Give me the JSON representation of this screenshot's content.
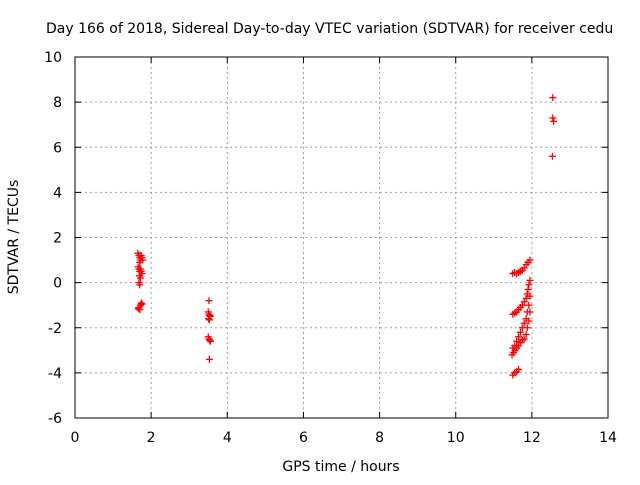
{
  "chart_data": {
    "type": "scatter",
    "title": "Day 166 of 2018, Sidereal Day-to-day VTEC variation (SDTVAR) for receiver cedu",
    "xlabel": "GPS time / hours",
    "ylabel": "SDTVAR / TECUs",
    "xlim": [
      0,
      14
    ],
    "ylim": [
      -6,
      10
    ],
    "xticks": [
      0,
      2,
      4,
      6,
      8,
      10,
      12,
      14
    ],
    "yticks": [
      -6,
      -4,
      -2,
      0,
      2,
      4,
      6,
      8,
      10
    ],
    "grid": true,
    "marker": "plus",
    "series": [
      {
        "name": "SDTVAR",
        "color": "#ff0000",
        "points": [
          [
            1.65,
            1.3
          ],
          [
            1.68,
            1.2
          ],
          [
            1.7,
            1.1
          ],
          [
            1.72,
            1.0
          ],
          [
            1.74,
            1.2
          ],
          [
            1.76,
            1.1
          ],
          [
            1.78,
            1.0
          ],
          [
            1.7,
            0.9
          ],
          [
            1.66,
            0.7
          ],
          [
            1.68,
            0.6
          ],
          [
            1.7,
            0.5
          ],
          [
            1.72,
            0.6
          ],
          [
            1.74,
            0.5
          ],
          [
            1.76,
            0.4
          ],
          [
            1.69,
            0.3
          ],
          [
            1.72,
            0.2
          ],
          [
            1.68,
            0.0
          ],
          [
            1.7,
            -0.1
          ],
          [
            1.68,
            -1.1
          ],
          [
            1.7,
            -1.2
          ],
          [
            1.72,
            -1.0
          ],
          [
            1.74,
            -0.9
          ],
          [
            1.76,
            -0.95
          ],
          [
            1.66,
            -1.15
          ],
          [
            3.52,
            -0.8
          ],
          [
            3.5,
            -1.3
          ],
          [
            3.52,
            -1.4
          ],
          [
            3.54,
            -1.45
          ],
          [
            3.51,
            -1.6
          ],
          [
            3.55,
            -1.5
          ],
          [
            3.53,
            -1.65
          ],
          [
            3.5,
            -2.4
          ],
          [
            3.52,
            -2.5
          ],
          [
            3.54,
            -2.55
          ],
          [
            3.56,
            -2.6
          ],
          [
            3.53,
            -3.4
          ],
          [
            11.5,
            0.4
          ],
          [
            11.55,
            0.45
          ],
          [
            11.6,
            0.4
          ],
          [
            11.65,
            0.45
          ],
          [
            11.7,
            0.5
          ],
          [
            11.75,
            0.55
          ],
          [
            11.8,
            0.65
          ],
          [
            11.85,
            0.8
          ],
          [
            11.9,
            0.9
          ],
          [
            11.95,
            1.0
          ],
          [
            11.5,
            -1.4
          ],
          [
            11.55,
            -1.35
          ],
          [
            11.6,
            -1.3
          ],
          [
            11.65,
            -1.2
          ],
          [
            11.7,
            -1.1
          ],
          [
            11.75,
            -1.0
          ],
          [
            11.8,
            -0.85
          ],
          [
            11.85,
            -0.7
          ],
          [
            11.88,
            -0.5
          ],
          [
            11.9,
            -0.3
          ],
          [
            11.92,
            -0.1
          ],
          [
            11.95,
            0.1
          ],
          [
            11.5,
            -2.9
          ],
          [
            11.55,
            -2.8
          ],
          [
            11.6,
            -2.6
          ],
          [
            11.65,
            -2.4
          ],
          [
            11.7,
            -2.2
          ],
          [
            11.75,
            -2.0
          ],
          [
            11.8,
            -1.8
          ],
          [
            11.85,
            -1.6
          ],
          [
            11.88,
            -1.3
          ],
          [
            11.92,
            -1.0
          ],
          [
            11.95,
            -0.6
          ],
          [
            11.48,
            -3.2
          ],
          [
            11.52,
            -3.1
          ],
          [
            11.56,
            -3.0
          ],
          [
            11.6,
            -2.9
          ],
          [
            11.65,
            -2.8
          ],
          [
            11.7,
            -2.65
          ],
          [
            11.75,
            -2.55
          ],
          [
            11.8,
            -2.5
          ],
          [
            11.85,
            -2.3
          ],
          [
            11.88,
            -2.0
          ],
          [
            11.92,
            -1.7
          ],
          [
            11.95,
            -1.3
          ],
          [
            11.5,
            -4.1
          ],
          [
            11.55,
            -4.0
          ],
          [
            11.6,
            -3.95
          ],
          [
            11.65,
            -3.85
          ],
          [
            12.55,
            8.2
          ],
          [
            12.55,
            7.3
          ],
          [
            12.57,
            7.15
          ],
          [
            12.54,
            5.6
          ]
        ]
      }
    ]
  }
}
